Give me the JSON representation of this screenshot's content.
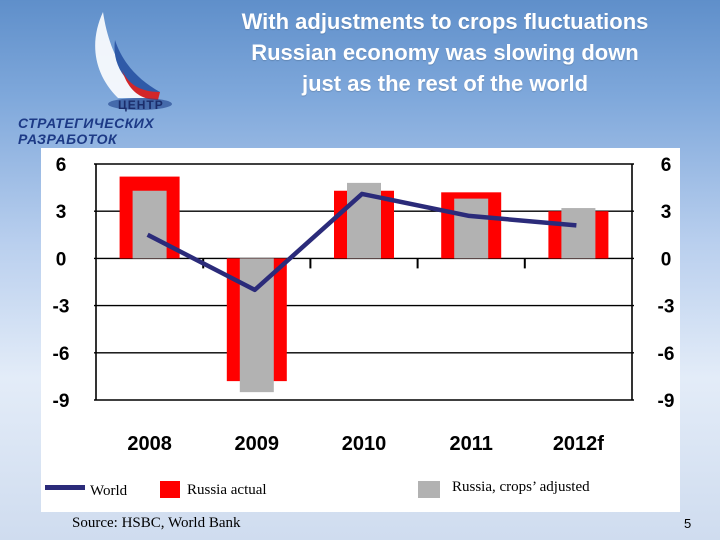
{
  "slide": {
    "title": "With adjustments to crops fluctuations\nRussian economy was slowing down\njust as the rest of the world",
    "number": "5",
    "source": "Source: HSBC, World Bank"
  },
  "logo": {
    "line1": "ЦЕНТР",
    "line2": "СТРАТЕГИЧЕСКИХ",
    "line3": "РАЗРАБОТОК"
  },
  "legend": {
    "world": "World",
    "russia_actual": "Russia actual",
    "russia_adjusted": "Russia, crops’ adjusted"
  },
  "colors": {
    "russia_actual": "#ff0000",
    "russia_adjusted": "#b2b2b2",
    "world": "#2b2b7a"
  },
  "chart_data": {
    "type": "bar",
    "title": "",
    "categories": [
      "2008",
      "2009",
      "2010",
      "2011",
      "2012f"
    ],
    "series": [
      {
        "name": "Russia actual",
        "kind": "bar",
        "values": [
          5.2,
          -7.8,
          4.3,
          4.2,
          3.0
        ]
      },
      {
        "name": "Russia, crops’ adjusted",
        "kind": "bar",
        "values": [
          4.3,
          -8.5,
          4.8,
          3.8,
          3.2
        ]
      },
      {
        "name": "World",
        "kind": "line",
        "values": [
          1.5,
          -2.0,
          4.1,
          2.7,
          2.1
        ]
      }
    ],
    "yticks_left": [
      "6",
      "3",
      "0",
      "-3",
      "-6",
      "-9"
    ],
    "yticks_right": [
      "6",
      "3",
      "0",
      "-3",
      "-6",
      "-9"
    ],
    "ylim": [
      -9,
      6
    ],
    "grid": true,
    "xlabel": "",
    "ylabel": ""
  }
}
